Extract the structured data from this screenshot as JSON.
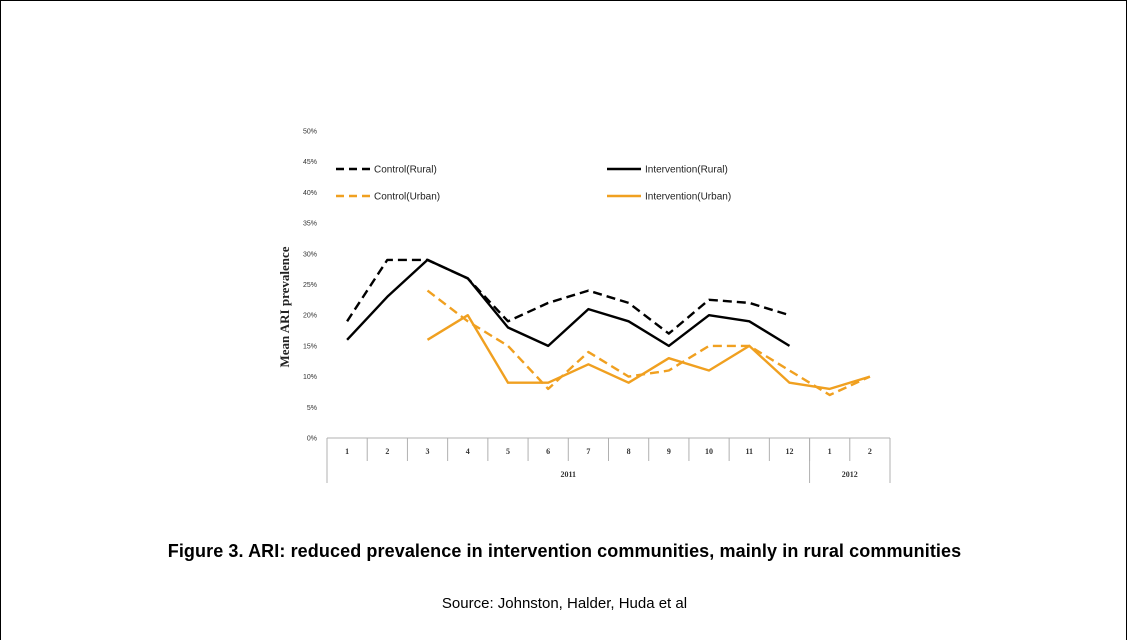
{
  "chart_data": {
    "type": "line",
    "ylabel": "Mean ARI prevalence",
    "ylim": [
      0,
      50
    ],
    "yticks": [
      "0%",
      "5%",
      "10%",
      "15%",
      "20%",
      "25%",
      "30%",
      "35%",
      "40%",
      "45%",
      "50%"
    ],
    "categories": [
      "1",
      "2",
      "3",
      "4",
      "5",
      "6",
      "7",
      "8",
      "9",
      "10",
      "11",
      "12",
      "1",
      "2"
    ],
    "year_groups": [
      {
        "label": "2011",
        "from": 0,
        "to": 11
      },
      {
        "label": "2012",
        "from": 12,
        "to": 13
      }
    ],
    "legend_position": "top",
    "grid": false,
    "series": [
      {
        "name": "Control(Rural)",
        "color": "#000000",
        "dashed": true,
        "values": [
          19,
          29,
          29,
          26,
          19,
          22,
          24,
          22,
          17,
          22.5,
          22,
          20,
          null,
          null
        ]
      },
      {
        "name": "Intervention(Rural)",
        "color": "#000000",
        "dashed": false,
        "values": [
          16,
          23,
          29,
          26,
          18,
          15,
          21,
          19,
          15,
          20,
          19,
          15,
          null,
          null
        ]
      },
      {
        "name": "Control(Urban)",
        "color": "#F0A020",
        "dashed": true,
        "values": [
          null,
          null,
          24,
          19,
          15,
          8,
          14,
          10,
          11,
          15,
          15,
          11,
          7,
          10
        ]
      },
      {
        "name": "Intervention(Urban)",
        "color": "#F0A020",
        "dashed": false,
        "values": [
          null,
          null,
          16,
          20,
          9,
          9,
          12,
          9,
          13,
          11,
          15,
          9,
          8,
          10
        ]
      }
    ]
  },
  "caption": "Figure 3. ARI: reduced prevalence in intervention communities, mainly in rural communities",
  "source": "Source: Johnston, Halder, Huda et al"
}
